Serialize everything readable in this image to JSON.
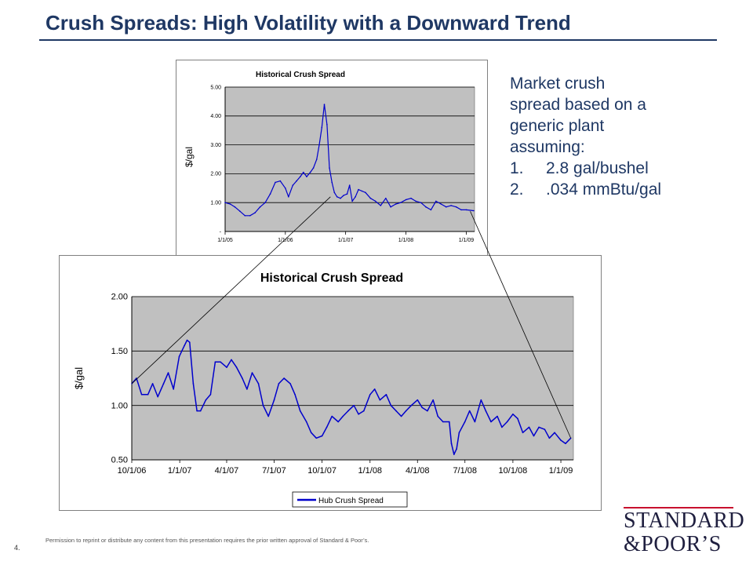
{
  "slide": {
    "title": "Crush Spreads: High Volatility with a Downward Trend",
    "note_lines": [
      "Market crush",
      "spread based on a",
      "generic plant",
      "assuming:"
    ],
    "note_list": [
      {
        "num": "1.",
        "text": "2.8 gal/bushel"
      },
      {
        "num": "2.",
        "text": ".034 mmBtu/gal"
      }
    ],
    "footer": "Permission to reprint or distribute any content from this presentation requires the prior written approval of Standard & Poor’s.",
    "page_number": "4.",
    "logo": {
      "line1": "STANDARD",
      "line2": "&POOR’S"
    }
  },
  "colors": {
    "title": "#1f3864",
    "series": "#0000cc",
    "plot_bg": "#c0c0c0",
    "logo_rule": "#c8102e"
  },
  "chart_data": [
    {
      "type": "line",
      "title": "Historical Crush Spread",
      "ylabel": "$/gal",
      "xlabel": "",
      "ylim": [
        0,
        5
      ],
      "y_ticks": [
        0,
        1,
        2,
        3,
        4,
        5
      ],
      "y_tick_labels": [
        "-",
        "1.00",
        "2.00",
        "3.00",
        "4.00",
        "5.00"
      ],
      "x_ticks": [
        "2005-01-01",
        "2006-01-01",
        "2007-01-01",
        "2008-01-01",
        "2009-01-01"
      ],
      "x_tick_labels": [
        "1/1/05",
        "1/1/06",
        "1/1/07",
        "1/1/08",
        "1/1/09"
      ],
      "xlim": [
        "2005-01-01",
        "2009-02-20"
      ],
      "grid": true,
      "legend": "none",
      "series": [
        {
          "x": [
            "2005-01-01",
            "2005-02-01",
            "2005-03-01",
            "2005-04-01",
            "2005-05-01",
            "2005-06-01",
            "2005-07-01",
            "2005-08-01",
            "2005-09-01",
            "2005-10-01",
            "2005-11-01",
            "2005-12-01",
            "2006-01-01",
            "2006-01-20",
            "2006-02-15",
            "2006-03-10",
            "2006-04-01",
            "2006-04-20",
            "2006-05-10",
            "2006-06-01",
            "2006-06-20",
            "2006-07-10",
            "2006-07-25",
            "2006-08-10",
            "2006-08-25",
            "2006-09-10",
            "2006-09-25",
            "2006-10-10",
            "2006-10-25",
            "2006-11-10",
            "2006-12-01",
            "2006-12-20",
            "2007-01-10",
            "2007-01-25",
            "2007-02-10",
            "2007-03-01",
            "2007-03-20",
            "2007-04-10",
            "2007-05-01",
            "2007-06-01",
            "2007-07-01",
            "2007-08-01",
            "2007-09-01",
            "2007-10-01",
            "2007-11-01",
            "2007-12-01",
            "2008-01-01",
            "2008-02-01",
            "2008-03-01",
            "2008-04-01",
            "2008-05-01",
            "2008-06-01",
            "2008-07-01",
            "2008-08-01",
            "2008-09-01",
            "2008-10-01",
            "2008-11-01",
            "2008-12-01",
            "2009-01-01",
            "2009-02-15"
          ],
          "values": [
            1.0,
            0.95,
            0.85,
            0.7,
            0.55,
            0.55,
            0.65,
            0.85,
            1.0,
            1.3,
            1.7,
            1.75,
            1.5,
            1.2,
            1.6,
            1.75,
            1.9,
            2.05,
            1.9,
            2.05,
            2.2,
            2.5,
            3.0,
            3.6,
            4.4,
            3.7,
            2.2,
            1.7,
            1.35,
            1.2,
            1.15,
            1.25,
            1.3,
            1.6,
            1.05,
            1.2,
            1.45,
            1.4,
            1.35,
            1.15,
            1.05,
            0.9,
            1.15,
            0.85,
            0.95,
            1.0,
            1.1,
            1.15,
            1.05,
            1.0,
            0.85,
            0.75,
            1.05,
            0.95,
            0.85,
            0.9,
            0.85,
            0.75,
            0.75,
            0.72
          ]
        }
      ]
    },
    {
      "type": "line",
      "title": "Historical Crush Spread",
      "ylabel": "$/gal",
      "xlabel": "",
      "ylim": [
        0.5,
        2.0
      ],
      "y_ticks": [
        0.5,
        1.0,
        1.5,
        2.0
      ],
      "y_tick_labels": [
        "0.50",
        "1.00",
        "1.50",
        "2.00"
      ],
      "x_ticks": [
        "2006-10-01",
        "2007-01-01",
        "2007-04-01",
        "2007-07-01",
        "2007-10-01",
        "2008-01-01",
        "2008-04-01",
        "2008-07-01",
        "2008-10-01",
        "2009-01-01"
      ],
      "x_tick_labels": [
        "10/1/06",
        "1/1/07",
        "4/1/07",
        "7/1/07",
        "10/1/07",
        "1/1/08",
        "4/1/08",
        "7/1/08",
        "10/1/08",
        "1/1/09"
      ],
      "xlim": [
        "2006-10-01",
        "2009-01-25"
      ],
      "grid": true,
      "legend": "bottom-center",
      "series": [
        {
          "name": "Hub Crush Spread",
          "x": [
            "2006-10-01",
            "2006-10-10",
            "2006-10-20",
            "2006-11-01",
            "2006-11-10",
            "2006-11-20",
            "2006-12-01",
            "2006-12-10",
            "2006-12-20",
            "2006-12-31",
            "2007-01-05",
            "2007-01-10",
            "2007-01-15",
            "2007-01-20",
            "2007-01-27",
            "2007-02-03",
            "2007-02-10",
            "2007-02-20",
            "2007-03-01",
            "2007-03-10",
            "2007-03-20",
            "2007-04-01",
            "2007-04-10",
            "2007-04-20",
            "2007-05-01",
            "2007-05-10",
            "2007-05-20",
            "2007-06-01",
            "2007-06-10",
            "2007-06-20",
            "2007-07-01",
            "2007-07-10",
            "2007-07-20",
            "2007-08-01",
            "2007-08-10",
            "2007-08-20",
            "2007-09-01",
            "2007-09-10",
            "2007-09-20",
            "2007-10-01",
            "2007-10-10",
            "2007-10-20",
            "2007-11-01",
            "2007-11-10",
            "2007-11-20",
            "2007-12-01",
            "2007-12-10",
            "2007-12-20",
            "2008-01-01",
            "2008-01-10",
            "2008-01-20",
            "2008-02-01",
            "2008-02-10",
            "2008-02-20",
            "2008-03-01",
            "2008-03-10",
            "2008-03-20",
            "2008-04-01",
            "2008-04-10",
            "2008-04-20",
            "2008-05-01",
            "2008-05-10",
            "2008-05-20",
            "2008-06-01",
            "2008-06-05",
            "2008-06-10",
            "2008-06-15",
            "2008-06-20",
            "2008-07-01",
            "2008-07-10",
            "2008-07-20",
            "2008-08-01",
            "2008-08-10",
            "2008-08-20",
            "2008-09-01",
            "2008-09-10",
            "2008-09-20",
            "2008-10-01",
            "2008-10-10",
            "2008-10-20",
            "2008-11-01",
            "2008-11-10",
            "2008-11-20",
            "2008-12-01",
            "2008-12-10",
            "2008-12-20",
            "2009-01-01",
            "2009-01-10",
            "2009-01-20"
          ],
          "values": [
            1.2,
            1.25,
            1.1,
            1.1,
            1.2,
            1.08,
            1.2,
            1.3,
            1.15,
            1.45,
            1.5,
            1.55,
            1.6,
            1.58,
            1.2,
            0.95,
            0.95,
            1.05,
            1.1,
            1.4,
            1.4,
            1.35,
            1.42,
            1.35,
            1.25,
            1.15,
            1.3,
            1.2,
            1.0,
            0.9,
            1.05,
            1.2,
            1.25,
            1.2,
            1.1,
            0.95,
            0.85,
            0.75,
            0.7,
            0.72,
            0.8,
            0.9,
            0.85,
            0.9,
            0.95,
            1.0,
            0.92,
            0.95,
            1.1,
            1.15,
            1.05,
            1.1,
            1.0,
            0.95,
            0.9,
            0.95,
            1.0,
            1.05,
            0.98,
            0.95,
            1.05,
            0.9,
            0.85,
            0.85,
            0.65,
            0.55,
            0.6,
            0.75,
            0.85,
            0.95,
            0.85,
            1.05,
            0.95,
            0.85,
            0.9,
            0.8,
            0.85,
            0.92,
            0.88,
            0.75,
            0.8,
            0.72,
            0.8,
            0.78,
            0.7,
            0.75,
            0.68,
            0.65,
            0.7
          ]
        }
      ]
    }
  ]
}
